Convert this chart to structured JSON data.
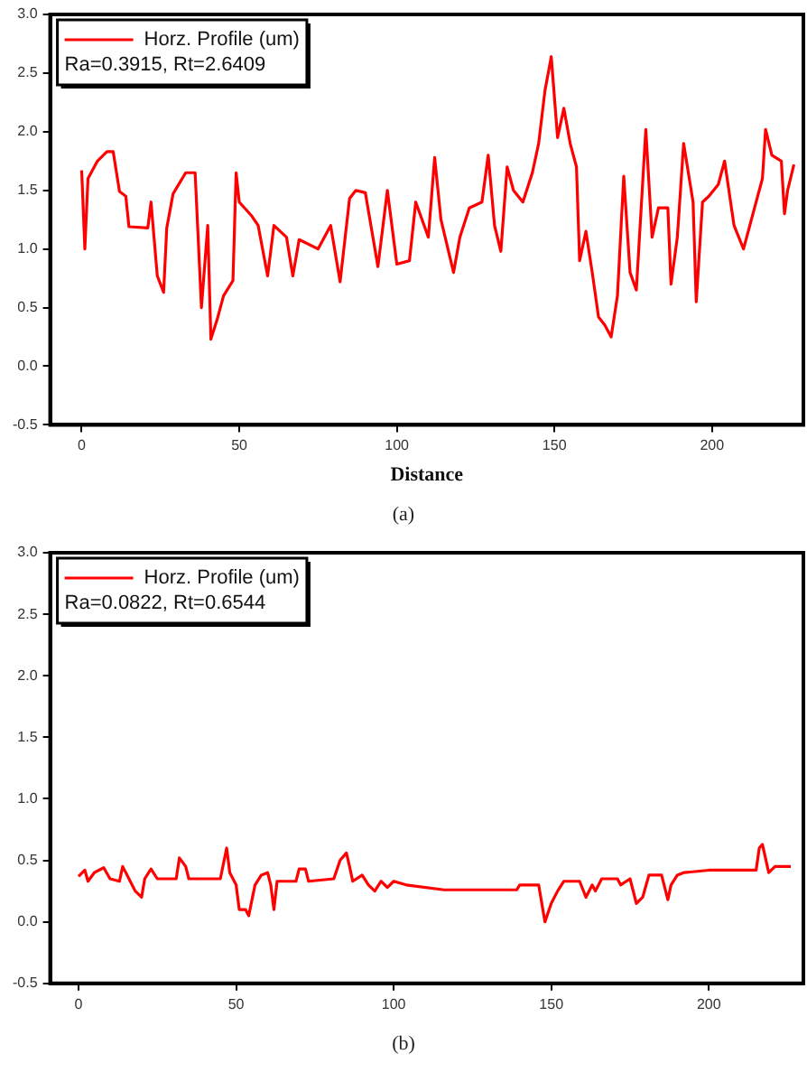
{
  "chart_data": [
    {
      "type": "line",
      "xlabel": "Distance",
      "legend": "top left",
      "grid": false,
      "marker": "none",
      "line_style": "solid",
      "xlim": [
        -10,
        229
      ],
      "xticks": [
        0,
        50,
        100,
        150,
        200
      ],
      "ylim": [
        -0.5,
        3.0
      ],
      "yticks": [
        {
          "value": -0.5,
          "label": "-0.5"
        },
        {
          "value": 0,
          "label": "0.0"
        },
        {
          "value": 0.5,
          "label": "0.5"
        },
        {
          "value": 1,
          "label": "1.0"
        },
        {
          "value": 1.5,
          "label": "1.5"
        },
        {
          "value": 2,
          "label": "2.0"
        },
        {
          "value": 2.5,
          "label": "2.5"
        },
        {
          "value": 3,
          "label": "3.0"
        }
      ],
      "annotations": [
        "Ra=0.3915, Rt=2.6409",
        "(a)"
      ],
      "series": [
        {
          "name": "Horz. Profile (um)",
          "color": "#ff0000",
          "x": [
            0,
            1,
            2,
            5,
            8,
            10,
            12,
            14,
            15,
            21,
            22,
            24,
            26,
            27,
            29,
            33,
            36,
            38,
            40,
            41,
            43,
            45,
            48,
            49,
            50,
            54,
            56,
            59,
            61,
            65,
            67,
            69,
            75,
            79,
            82,
            85,
            87,
            90,
            94,
            97,
            100,
            104,
            106,
            110,
            112,
            114,
            118,
            120,
            123,
            127,
            129,
            131,
            133,
            135,
            137,
            140,
            143,
            145,
            147,
            149,
            151,
            153,
            155,
            157,
            158,
            160,
            162,
            164,
            166,
            168,
            170,
            172,
            174,
            176,
            179,
            181,
            183,
            186,
            187,
            189,
            191,
            194,
            195,
            197,
            199,
            202,
            204,
            207,
            210,
            213,
            216,
            217,
            219,
            222,
            223,
            224,
            226
          ],
          "values": [
            1.67,
            1.0,
            1.6,
            1.75,
            1.83,
            1.83,
            1.49,
            1.45,
            1.19,
            1.18,
            1.4,
            0.77,
            0.63,
            1.18,
            1.47,
            1.65,
            1.65,
            0.5,
            1.2,
            0.23,
            0.4,
            0.6,
            0.73,
            1.65,
            1.4,
            1.28,
            1.2,
            0.77,
            1.2,
            1.1,
            0.77,
            1.08,
            1.0,
            1.2,
            0.72,
            1.43,
            1.5,
            1.48,
            0.85,
            1.5,
            0.87,
            0.9,
            1.4,
            1.1,
            1.78,
            1.25,
            0.8,
            1.1,
            1.35,
            1.4,
            1.8,
            1.2,
            0.98,
            1.7,
            1.5,
            1.4,
            1.65,
            1.9,
            2.35,
            2.64,
            1.95,
            2.2,
            1.9,
            1.7,
            0.9,
            1.15,
            0.8,
            0.42,
            0.35,
            0.25,
            0.6,
            1.62,
            0.8,
            0.65,
            2.02,
            1.1,
            1.35,
            1.35,
            0.7,
            1.1,
            1.9,
            1.4,
            0.55,
            1.4,
            1.45,
            1.55,
            1.75,
            1.2,
            1.0,
            1.3,
            1.6,
            2.02,
            1.8,
            1.75,
            1.3,
            1.5,
            1.72
          ]
        }
      ]
    },
    {
      "type": "line",
      "legend": "top left",
      "grid": false,
      "marker": "none",
      "line_style": "solid",
      "xlim": [
        -9,
        230
      ],
      "xticks": [
        0,
        50,
        100,
        150,
        200
      ],
      "ylim": [
        -0.5,
        3.0
      ],
      "yticks": [
        {
          "value": -0.5,
          "label": "-0.5"
        },
        {
          "value": 0,
          "label": "0.0"
        },
        {
          "value": 0.5,
          "label": "0.5"
        },
        {
          "value": 1,
          "label": "1.0"
        },
        {
          "value": 1.5,
          "label": "1.5"
        },
        {
          "value": 2,
          "label": "2.0"
        },
        {
          "value": 2.5,
          "label": "2.5"
        },
        {
          "value": 3,
          "label": "3.0"
        }
      ],
      "annotations": [
        "Ra=0.0822, Rt=0.6544",
        "(b)"
      ],
      "series": [
        {
          "name": "Horz. Profile (um)",
          "color": "#ff0000",
          "x": [
            0,
            2,
            3,
            5,
            8,
            10,
            13,
            14,
            16,
            18,
            20,
            21,
            23,
            25,
            31,
            32,
            34,
            35,
            45,
            47,
            48,
            50,
            51,
            53,
            54,
            56,
            58,
            60,
            61,
            62,
            63,
            69,
            70,
            72,
            73,
            81,
            83,
            85,
            86,
            87,
            90,
            92,
            94,
            96,
            98,
            100,
            104,
            116,
            139,
            140,
            146,
            148,
            150,
            152,
            154,
            159,
            161,
            163,
            164,
            166,
            171,
            172,
            175,
            177,
            179,
            181,
            185,
            187,
            188,
            190,
            192,
            200,
            215,
            216,
            217,
            219,
            221,
            226
          ],
          "values": [
            0.37,
            0.42,
            0.33,
            0.4,
            0.44,
            0.35,
            0.33,
            0.45,
            0.35,
            0.25,
            0.2,
            0.35,
            0.43,
            0.35,
            0.35,
            0.52,
            0.45,
            0.35,
            0.35,
            0.6,
            0.4,
            0.3,
            0.1,
            0.1,
            0.05,
            0.3,
            0.38,
            0.4,
            0.3,
            0.1,
            0.33,
            0.33,
            0.43,
            0.43,
            0.33,
            0.35,
            0.5,
            0.56,
            0.45,
            0.33,
            0.38,
            0.3,
            0.25,
            0.33,
            0.28,
            0.33,
            0.3,
            0.26,
            0.26,
            0.3,
            0.3,
            0.0,
            0.15,
            0.25,
            0.33,
            0.33,
            0.2,
            0.3,
            0.25,
            0.35,
            0.35,
            0.3,
            0.35,
            0.15,
            0.2,
            0.38,
            0.38,
            0.18,
            0.3,
            0.38,
            0.4,
            0.42,
            0.42,
            0.6,
            0.63,
            0.4,
            0.45,
            0.45
          ]
        }
      ]
    }
  ]
}
